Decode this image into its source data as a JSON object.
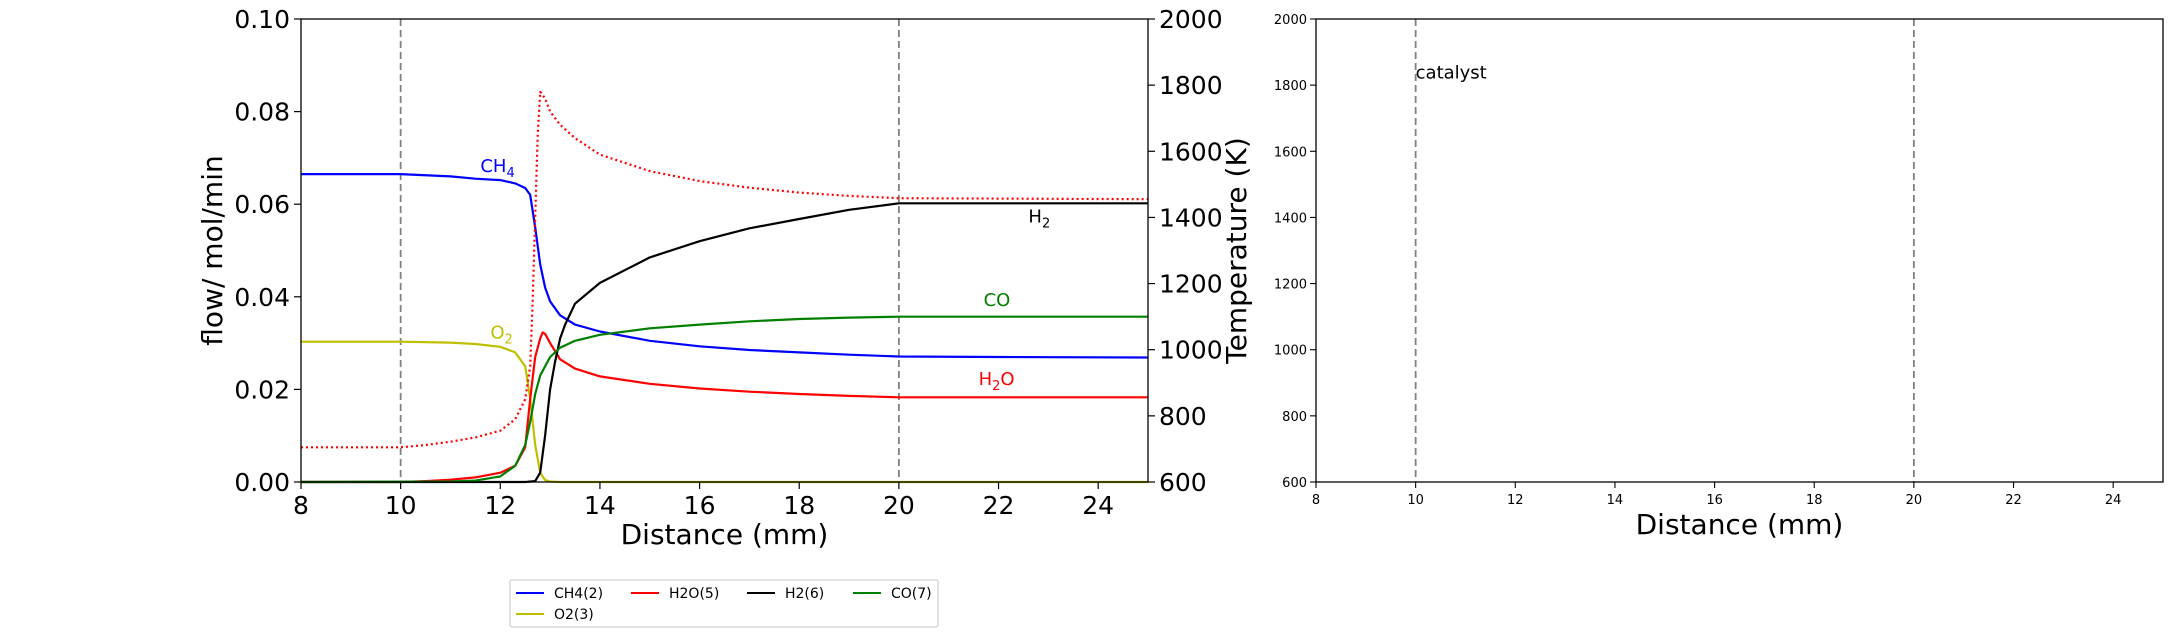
{
  "chart_data": [
    {
      "type": "line",
      "xlabel": "Distance (mm)",
      "ylabel": "flow/ mol/min",
      "y2label": "Temperature (K)",
      "xlim": [
        8,
        25
      ],
      "ylim": [
        0,
        0.1
      ],
      "y2lim": [
        600,
        2000
      ],
      "xticks": [
        "8",
        "10",
        "12",
        "14",
        "16",
        "18",
        "20",
        "22",
        "24"
      ],
      "yticks": [
        "0.00",
        "0.02",
        "0.04",
        "0.06",
        "0.08",
        "0.10"
      ],
      "y2ticks": [
        "600",
        "800",
        "1000",
        "1200",
        "1400",
        "1600",
        "1800",
        "2000"
      ],
      "vlines": [
        10,
        20
      ],
      "series": [
        {
          "name": "CH4(2)",
          "color": "#0000ff",
          "style": "solid",
          "x": [
            8,
            10,
            11,
            11.5,
            12,
            12.3,
            12.5,
            12.6,
            12.7,
            12.8,
            12.9,
            13.0,
            13.2,
            13.5,
            14,
            15,
            16,
            17,
            18,
            19,
            20,
            22,
            25
          ],
          "y": [
            0.0665,
            0.0665,
            0.066,
            0.0655,
            0.0652,
            0.0645,
            0.0635,
            0.062,
            0.055,
            0.047,
            0.042,
            0.039,
            0.036,
            0.034,
            0.0325,
            0.0305,
            0.0293,
            0.0285,
            0.028,
            0.0275,
            0.0271,
            0.027,
            0.0269
          ]
        },
        {
          "name": "O2(3)",
          "color": "#bfbf00",
          "style": "solid",
          "x": [
            8,
            10,
            11,
            11.5,
            12,
            12.3,
            12.5,
            12.6,
            12.7,
            12.8,
            12.9,
            13.0,
            13.2,
            14,
            25
          ],
          "y": [
            0.0303,
            0.0303,
            0.0301,
            0.0298,
            0.0292,
            0.028,
            0.025,
            0.018,
            0.008,
            0.002,
            0.0004,
            0.0001,
            0.0,
            0.0,
            0.0
          ]
        },
        {
          "name": "H2O(5)",
          "color": "#ff0000",
          "style": "solid",
          "x": [
            8,
            10,
            10.5,
            11,
            11.5,
            12,
            12.3,
            12.5,
            12.6,
            12.7,
            12.8,
            12.85,
            12.9,
            13.0,
            13.2,
            13.5,
            14,
            15,
            16,
            17,
            18,
            19,
            20,
            25
          ],
          "y": [
            0.0,
            0.0,
            0.0002,
            0.0005,
            0.001,
            0.002,
            0.0035,
            0.0075,
            0.018,
            0.027,
            0.031,
            0.0323,
            0.032,
            0.03,
            0.0265,
            0.0245,
            0.0228,
            0.0212,
            0.0202,
            0.0195,
            0.019,
            0.0186,
            0.0183,
            0.0183
          ]
        },
        {
          "name": "H2(6)",
          "color": "#000000",
          "style": "solid",
          "x": [
            8,
            12.5,
            12.7,
            12.8,
            12.9,
            13.0,
            13.1,
            13.2,
            13.3,
            13.5,
            14,
            15,
            16,
            17,
            18,
            19,
            20,
            25
          ],
          "y": [
            0.0,
            0.0,
            0.0002,
            0.002,
            0.01,
            0.02,
            0.026,
            0.031,
            0.034,
            0.0385,
            0.043,
            0.0485,
            0.052,
            0.0548,
            0.0568,
            0.0588,
            0.0602,
            0.0602
          ]
        },
        {
          "name": "CO(7)",
          "color": "#008000",
          "style": "solid",
          "x": [
            8,
            11,
            11.5,
            12,
            12.3,
            12.5,
            12.6,
            12.7,
            12.8,
            12.9,
            13.0,
            13.2,
            13.5,
            14,
            15,
            16,
            17,
            18,
            19,
            20,
            25
          ],
          "y": [
            0.0,
            0.0001,
            0.0003,
            0.0012,
            0.0035,
            0.008,
            0.013,
            0.019,
            0.023,
            0.025,
            0.027,
            0.029,
            0.0305,
            0.0318,
            0.0332,
            0.034,
            0.0347,
            0.0352,
            0.0355,
            0.0357,
            0.0357
          ]
        },
        {
          "name": "",
          "color": "#ff0000",
          "style": "dotted",
          "axis": "y2",
          "x": [
            8,
            10,
            10.5,
            11,
            11.5,
            12,
            12.3,
            12.5,
            12.6,
            12.65,
            12.7,
            12.75,
            12.8,
            12.9,
            13.0,
            13.2,
            13.5,
            14,
            15,
            16,
            17,
            18,
            19,
            20,
            25
          ],
          "y": [
            705,
            705,
            712,
            722,
            735,
            755,
            790,
            850,
            950,
            1150,
            1400,
            1650,
            1780,
            1760,
            1720,
            1680,
            1640,
            1590,
            1540,
            1510,
            1490,
            1475,
            1465,
            1458,
            1455
          ]
        }
      ],
      "annotations": [
        {
          "text": "CH",
          "sub": "4",
          "x": 11.6,
          "y": 0.067,
          "color": "#0000ff"
        },
        {
          "text": "O",
          "sub": "2",
          "x": 11.8,
          "y": 0.031,
          "color": "#bfbf00"
        },
        {
          "text": "H",
          "sub": "2",
          "x": 22.6,
          "y": 0.056,
          "color": "#000000"
        },
        {
          "text": "CO",
          "sub": "",
          "x": 21.7,
          "y": 0.038,
          "color": "#008000"
        },
        {
          "text": "H",
          "sub": "2",
          "tail": "O",
          "x": 21.6,
          "y": 0.021,
          "color": "#ff0000"
        }
      ],
      "legend": {
        "placement": "below",
        "entries": [
          {
            "label": "CH4(2)",
            "color": "#0000ff"
          },
          {
            "label": "H2O(5)",
            "color": "#ff0000"
          },
          {
            "label": "H2(6)",
            "color": "#000000"
          },
          {
            "label": "CO(7)",
            "color": "#008000"
          },
          {
            "label": "O2(3)",
            "color": "#bfbf00"
          }
        ]
      }
    },
    {
      "type": "line",
      "xlabel": "Distance (mm)",
      "xlim": [
        8,
        25
      ],
      "ylim": [
        600,
        2000
      ],
      "xticks": [
        "8",
        "10",
        "12",
        "14",
        "16",
        "18",
        "20",
        "22",
        "24"
      ],
      "yticks": [
        "600",
        "800",
        "1000",
        "1200",
        "1400",
        "1600",
        "1800",
        "2000"
      ],
      "vlines": [
        10,
        20
      ],
      "series": [],
      "annotations": [
        {
          "text": "catalyst",
          "x": 10,
          "y": 1820,
          "color": "#000000"
        }
      ]
    }
  ]
}
